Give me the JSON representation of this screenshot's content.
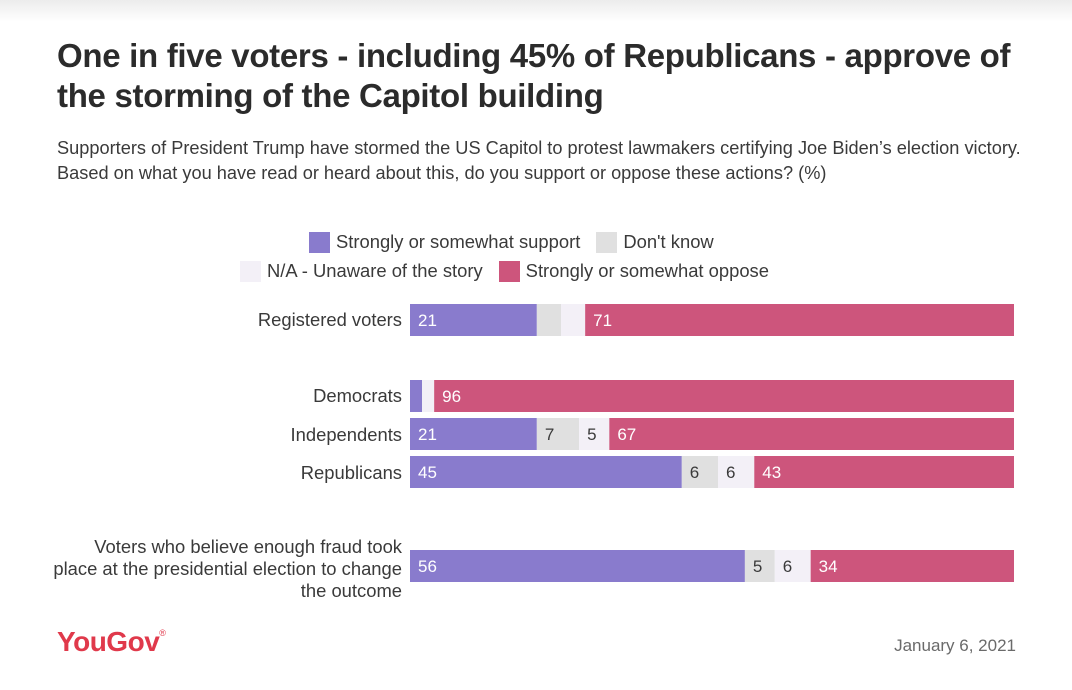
{
  "title": "One in five voters - including 45% of Republicans - approve of the storming of the Capitol building",
  "subtitle": "Supporters of President Trump have stormed the US Capitol to protest lawmakers certifying Joe Biden’s election victory. Based on what you have read or heard about this, do you support or oppose these actions? (%)",
  "footer": {
    "logo": "YouGov",
    "date": "January 6, 2021"
  },
  "chart_data": {
    "type": "bar",
    "orientation": "horizontal",
    "stacked": true,
    "xlim": [
      0,
      100
    ],
    "legend_position": "top",
    "legend": [
      "Strongly or somewhat support",
      "Don't know",
      "N/A - Unaware of the story",
      "Strongly or somewhat oppose"
    ],
    "categories": [
      "Registered voters",
      "Democrats",
      "Independents",
      "Republicans",
      "Voters who believe enough fraud took place at the presidential election to change the outcome"
    ],
    "series": [
      {
        "name": "Strongly or somewhat support",
        "color": "#897bcd",
        "values": [
          21,
          2,
          21,
          45,
          56
        ],
        "labels": [
          "21",
          "",
          "21",
          "45",
          "56"
        ]
      },
      {
        "name": "Don't know",
        "color": "#e0e0e0",
        "values": [
          4,
          0,
          7,
          6,
          5
        ],
        "labels": [
          "",
          "",
          "7",
          "6",
          "5"
        ]
      },
      {
        "name": "N/A - Unaware of the story",
        "color": "#f3f0f7",
        "values": [
          4,
          2,
          5,
          6,
          6
        ],
        "labels": [
          "",
          "",
          "5",
          "6",
          "6"
        ]
      },
      {
        "name": "Strongly or somewhat oppose",
        "color": "#cd557c",
        "values": [
          71,
          96,
          67,
          43,
          34
        ],
        "labels": [
          "71",
          "96",
          "67",
          "43",
          "34"
        ]
      }
    ]
  }
}
